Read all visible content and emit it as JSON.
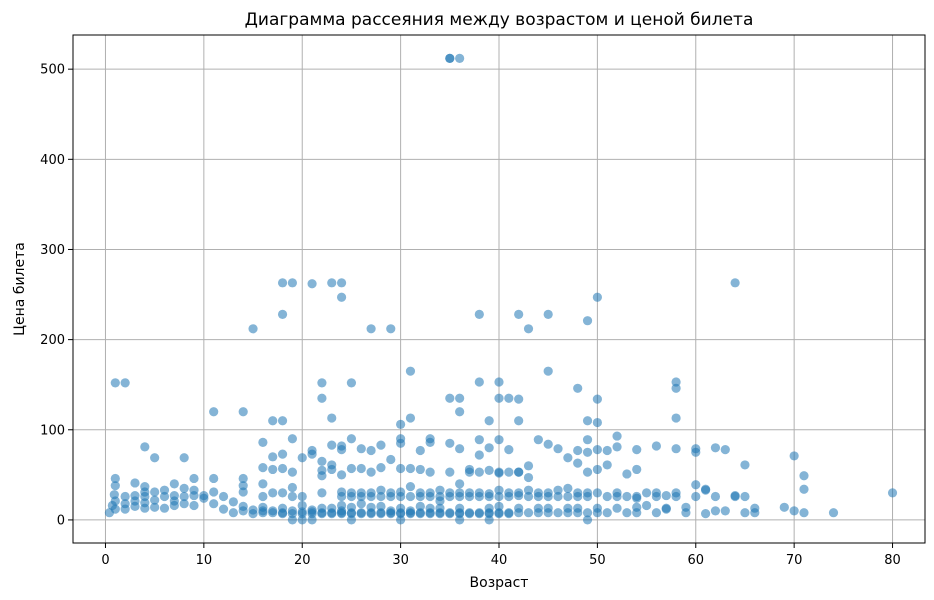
{
  "chart_data": {
    "type": "scatter",
    "title": "Диаграмма рассеяния между возрастом и ценой билета",
    "xlabel": "Возраст",
    "ylabel": "Цена билета",
    "xlim": [
      -3.3,
      83.3
    ],
    "ylim": [
      -25.6,
      537.9
    ],
    "xticks": [
      0,
      10,
      20,
      30,
      40,
      50,
      60,
      70,
      80
    ],
    "yticks": [
      0,
      100,
      200,
      300,
      400,
      500
    ],
    "grid": true,
    "legend": "none",
    "color": "#1f77b4",
    "alpha": 0.55,
    "points": [
      [
        35,
        512
      ],
      [
        36,
        512
      ],
      [
        35,
        512
      ],
      [
        18,
        263
      ],
      [
        19,
        263
      ],
      [
        21,
        262
      ],
      [
        23,
        263
      ],
      [
        24,
        263
      ],
      [
        64,
        263
      ],
      [
        24,
        247
      ],
      [
        50,
        247
      ],
      [
        18,
        228
      ],
      [
        38,
        228
      ],
      [
        42,
        228
      ],
      [
        45,
        228
      ],
      [
        15,
        212
      ],
      [
        27,
        212
      ],
      [
        29,
        212
      ],
      [
        43,
        212
      ],
      [
        49,
        221
      ],
      [
        31,
        165
      ],
      [
        45,
        165
      ],
      [
        1,
        152
      ],
      [
        2,
        152
      ],
      [
        22,
        152
      ],
      [
        25,
        152
      ],
      [
        38,
        153
      ],
      [
        40,
        153
      ],
      [
        58,
        153
      ],
      [
        58,
        146
      ],
      [
        48,
        146
      ],
      [
        22,
        135
      ],
      [
        35,
        135
      ],
      [
        36,
        135
      ],
      [
        40,
        135
      ],
      [
        41,
        135
      ],
      [
        42,
        134
      ],
      [
        50,
        134
      ],
      [
        11,
        120
      ],
      [
        14,
        120
      ],
      [
        36,
        120
      ],
      [
        17,
        110
      ],
      [
        18,
        110
      ],
      [
        23,
        113
      ],
      [
        31,
        113
      ],
      [
        39,
        110
      ],
      [
        42,
        110
      ],
      [
        49,
        110
      ],
      [
        58,
        113
      ],
      [
        50,
        108
      ],
      [
        30,
        106
      ],
      [
        4,
        81
      ],
      [
        5,
        69
      ],
      [
        8,
        69
      ],
      [
        17,
        70
      ],
      [
        20,
        69
      ],
      [
        19,
        90
      ],
      [
        21,
        77
      ],
      [
        21,
        73
      ],
      [
        22,
        65
      ],
      [
        23,
        61
      ],
      [
        24,
        82
      ],
      [
        24,
        78
      ],
      [
        25,
        90
      ],
      [
        26,
        79
      ],
      [
        27,
        77
      ],
      [
        28,
        83
      ],
      [
        29,
        67
      ],
      [
        30,
        90
      ],
      [
        30,
        85
      ],
      [
        32,
        77
      ],
      [
        33,
        90
      ],
      [
        33,
        86
      ],
      [
        35,
        85
      ],
      [
        36,
        79
      ],
      [
        37,
        56
      ],
      [
        38,
        89
      ],
      [
        38,
        72
      ],
      [
        39,
        80
      ],
      [
        40,
        89
      ],
      [
        40,
        52
      ],
      [
        41,
        78
      ],
      [
        42,
        53
      ],
      [
        43,
        60
      ],
      [
        44,
        89
      ],
      [
        45,
        84
      ],
      [
        46,
        79
      ],
      [
        47,
        69
      ],
      [
        48,
        77
      ],
      [
        48,
        63
      ],
      [
        49,
        89
      ],
      [
        49,
        75
      ],
      [
        50,
        78
      ],
      [
        51,
        77
      ],
      [
        52,
        93
      ],
      [
        52,
        81
      ],
      [
        53,
        51
      ],
      [
        54,
        78
      ],
      [
        54,
        56
      ],
      [
        56,
        82
      ],
      [
        57,
        27
      ],
      [
        58,
        79
      ],
      [
        60,
        79
      ],
      [
        60,
        75
      ],
      [
        61,
        34
      ],
      [
        62,
        80
      ],
      [
        63,
        78
      ],
      [
        65,
        61
      ],
      [
        70,
        71
      ],
      [
        71,
        49
      ],
      [
        71,
        34
      ],
      [
        80,
        30
      ],
      [
        0.4,
        8
      ],
      [
        0.7,
        16
      ],
      [
        0.9,
        28
      ],
      [
        1,
        38
      ],
      [
        1,
        46
      ],
      [
        1,
        21
      ],
      [
        1,
        12
      ],
      [
        2,
        26
      ],
      [
        2,
        18
      ],
      [
        2,
        12
      ],
      [
        3,
        41
      ],
      [
        3,
        27
      ],
      [
        3,
        21
      ],
      [
        3,
        15
      ],
      [
        4,
        37
      ],
      [
        4,
        31
      ],
      [
        4,
        26
      ],
      [
        4,
        19
      ],
      [
        4,
        13
      ],
      [
        5,
        31
      ],
      [
        5,
        22
      ],
      [
        5,
        14
      ],
      [
        6,
        33
      ],
      [
        6,
        26
      ],
      [
        6,
        13
      ],
      [
        7,
        40
      ],
      [
        7,
        27
      ],
      [
        7,
        21
      ],
      [
        7,
        16
      ],
      [
        8,
        35
      ],
      [
        8,
        26
      ],
      [
        8,
        18
      ],
      [
        9,
        46
      ],
      [
        9,
        33
      ],
      [
        9,
        27
      ],
      [
        9,
        16
      ],
      [
        10,
        27
      ],
      [
        10,
        24
      ],
      [
        11,
        46
      ],
      [
        11,
        31
      ],
      [
        11,
        18
      ],
      [
        12,
        12
      ],
      [
        12,
        26
      ],
      [
        13,
        8
      ],
      [
        13,
        20
      ],
      [
        14,
        46
      ],
      [
        14,
        38
      ],
      [
        14,
        31
      ],
      [
        14,
        15
      ],
      [
        14,
        10
      ],
      [
        15,
        11
      ],
      [
        15,
        7
      ],
      [
        16,
        86
      ],
      [
        16,
        58
      ],
      [
        16,
        40
      ],
      [
        16,
        26
      ],
      [
        16,
        14
      ],
      [
        16,
        10
      ],
      [
        16,
        8
      ],
      [
        17,
        56
      ],
      [
        17,
        30
      ],
      [
        17,
        10
      ],
      [
        17,
        8
      ],
      [
        18,
        73
      ],
      [
        18,
        57
      ],
      [
        18,
        30
      ],
      [
        18,
        13
      ],
      [
        18,
        8
      ],
      [
        18,
        7
      ],
      [
        19,
        53
      ],
      [
        19,
        36
      ],
      [
        19,
        26
      ],
      [
        19,
        10
      ],
      [
        19,
        7
      ],
      [
        19,
        0
      ],
      [
        20,
        26
      ],
      [
        20,
        16
      ],
      [
        20,
        9
      ],
      [
        20,
        7
      ],
      [
        20,
        0
      ],
      [
        21,
        11
      ],
      [
        21,
        9
      ],
      [
        21,
        7
      ],
      [
        21,
        0
      ],
      [
        22,
        55
      ],
      [
        22,
        49
      ],
      [
        22,
        30
      ],
      [
        22,
        13
      ],
      [
        22,
        8
      ],
      [
        22,
        7
      ],
      [
        23,
        83
      ],
      [
        23,
        56
      ],
      [
        23,
        13
      ],
      [
        23,
        8
      ],
      [
        23,
        7
      ],
      [
        24,
        50
      ],
      [
        24,
        31
      ],
      [
        24,
        26
      ],
      [
        24,
        16
      ],
      [
        24,
        10
      ],
      [
        24,
        8
      ],
      [
        24,
        7
      ],
      [
        25,
        57
      ],
      [
        25,
        30
      ],
      [
        25,
        26
      ],
      [
        25,
        14
      ],
      [
        25,
        8
      ],
      [
        25,
        7
      ],
      [
        25,
        0
      ],
      [
        26,
        57
      ],
      [
        26,
        30
      ],
      [
        26,
        26
      ],
      [
        26,
        18
      ],
      [
        26,
        8
      ],
      [
        26,
        7
      ],
      [
        27,
        53
      ],
      [
        27,
        30
      ],
      [
        27,
        26
      ],
      [
        27,
        14
      ],
      [
        27,
        8
      ],
      [
        27,
        7
      ],
      [
        28,
        58
      ],
      [
        28,
        33
      ],
      [
        28,
        26
      ],
      [
        28,
        15
      ],
      [
        28,
        8
      ],
      [
        28,
        7
      ],
      [
        29,
        30
      ],
      [
        29,
        26
      ],
      [
        29,
        10
      ],
      [
        29,
        8
      ],
      [
        29,
        7
      ],
      [
        30,
        57
      ],
      [
        30,
        31
      ],
      [
        30,
        26
      ],
      [
        30,
        13
      ],
      [
        30,
        8
      ],
      [
        30,
        7
      ],
      [
        30,
        0
      ],
      [
        31,
        57
      ],
      [
        31,
        37
      ],
      [
        31,
        26
      ],
      [
        31,
        10
      ],
      [
        31,
        8
      ],
      [
        31,
        7
      ],
      [
        32,
        56
      ],
      [
        32,
        30
      ],
      [
        32,
        26
      ],
      [
        32,
        15
      ],
      [
        32,
        8
      ],
      [
        32,
        7
      ],
      [
        33,
        53
      ],
      [
        33,
        30
      ],
      [
        33,
        26
      ],
      [
        33,
        13
      ],
      [
        33,
        8
      ],
      [
        33,
        7
      ],
      [
        34,
        33
      ],
      [
        34,
        26
      ],
      [
        34,
        21
      ],
      [
        34,
        13
      ],
      [
        34,
        8
      ],
      [
        34,
        7
      ],
      [
        35,
        53
      ],
      [
        35,
        30
      ],
      [
        35,
        26
      ],
      [
        35,
        8
      ],
      [
        35,
        7
      ],
      [
        36,
        40
      ],
      [
        36,
        30
      ],
      [
        36,
        26
      ],
      [
        36,
        13
      ],
      [
        36,
        8
      ],
      [
        36,
        7
      ],
      [
        36,
        0
      ],
      [
        37,
        53
      ],
      [
        37,
        30
      ],
      [
        37,
        26
      ],
      [
        37,
        8
      ],
      [
        37,
        7
      ],
      [
        38,
        53
      ],
      [
        38,
        30
      ],
      [
        38,
        26
      ],
      [
        38,
        8
      ],
      [
        38,
        7
      ],
      [
        39,
        55
      ],
      [
        39,
        29
      ],
      [
        39,
        26
      ],
      [
        39,
        13
      ],
      [
        39,
        8
      ],
      [
        39,
        7
      ],
      [
        39,
        0
      ],
      [
        40,
        53
      ],
      [
        40,
        33
      ],
      [
        40,
        26
      ],
      [
        40,
        15
      ],
      [
        40,
        8
      ],
      [
        40,
        7
      ],
      [
        41,
        53
      ],
      [
        41,
        30
      ],
      [
        41,
        26
      ],
      [
        41,
        8
      ],
      [
        41,
        7
      ],
      [
        42,
        53
      ],
      [
        42,
        30
      ],
      [
        42,
        27
      ],
      [
        42,
        13
      ],
      [
        42,
        8
      ],
      [
        43,
        47
      ],
      [
        43,
        33
      ],
      [
        43,
        26
      ],
      [
        43,
        8
      ],
      [
        44,
        30
      ],
      [
        44,
        26
      ],
      [
        44,
        13
      ],
      [
        44,
        8
      ],
      [
        45,
        30
      ],
      [
        45,
        26
      ],
      [
        45,
        13
      ],
      [
        45,
        8
      ],
      [
        46,
        33
      ],
      [
        46,
        26
      ],
      [
        46,
        8
      ],
      [
        47,
        35
      ],
      [
        47,
        26
      ],
      [
        47,
        13
      ],
      [
        47,
        8
      ],
      [
        48,
        30
      ],
      [
        48,
        26
      ],
      [
        48,
        13
      ],
      [
        48,
        8
      ],
      [
        49,
        53
      ],
      [
        49,
        30
      ],
      [
        49,
        26
      ],
      [
        49,
        8
      ],
      [
        49,
        0
      ],
      [
        50,
        56
      ],
      [
        50,
        30
      ],
      [
        50,
        13
      ],
      [
        50,
        8
      ],
      [
        51,
        61
      ],
      [
        51,
        26
      ],
      [
        51,
        8
      ],
      [
        52,
        30
      ],
      [
        52,
        26
      ],
      [
        52,
        13
      ],
      [
        53,
        26
      ],
      [
        53,
        8
      ],
      [
        54,
        26
      ],
      [
        54,
        24
      ],
      [
        54,
        14
      ],
      [
        54,
        8
      ],
      [
        55,
        30
      ],
      [
        55,
        16
      ],
      [
        56,
        30
      ],
      [
        56,
        26
      ],
      [
        56,
        8
      ],
      [
        57,
        13
      ],
      [
        57,
        12
      ],
      [
        58,
        30
      ],
      [
        58,
        26
      ],
      [
        59,
        14
      ],
      [
        59,
        8
      ],
      [
        60,
        39
      ],
      [
        60,
        26
      ],
      [
        61,
        33
      ],
      [
        61,
        7
      ],
      [
        62,
        26
      ],
      [
        62,
        10
      ],
      [
        63,
        10
      ],
      [
        64,
        27
      ],
      [
        64,
        26
      ],
      [
        65,
        26
      ],
      [
        65,
        8
      ],
      [
        66,
        13
      ],
      [
        66,
        8
      ],
      [
        69,
        14
      ],
      [
        70,
        10
      ],
      [
        71,
        8
      ],
      [
        74,
        8
      ]
    ]
  }
}
